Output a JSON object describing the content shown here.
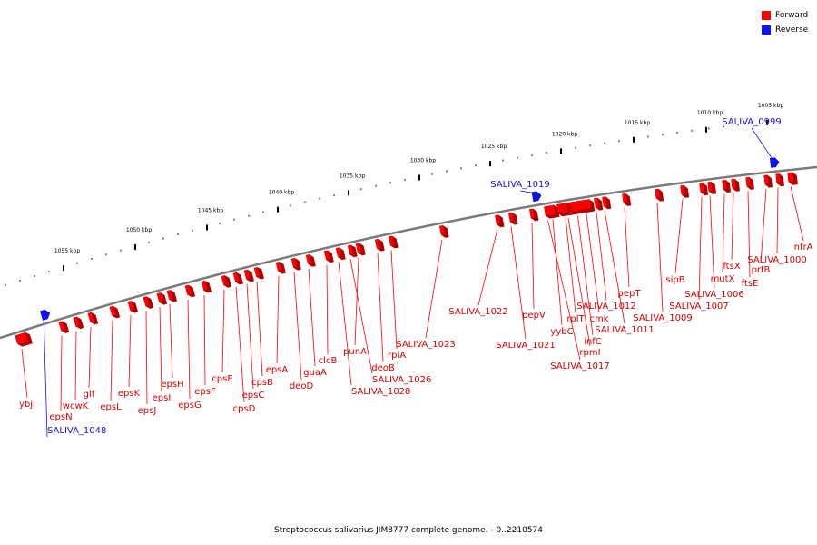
{
  "caption": "Streptococcus salivarius JIM8777 complete genome. - 0..2210574",
  "legend": {
    "forward": {
      "label": "Forward",
      "color": "#ff0000"
    },
    "reverse": {
      "label": "Reverse",
      "color": "#1010ff"
    }
  },
  "track": {
    "color": "#7a7a7a"
  },
  "ticks": [
    {
      "kbp": 1005,
      "label": "1005 kbp"
    },
    {
      "kbp": 1010,
      "label": "1010 kbp"
    },
    {
      "kbp": 1015,
      "label": "1015 kbp"
    },
    {
      "kbp": 1020,
      "label": "1020 kbp"
    },
    {
      "kbp": 1025,
      "label": "1025 kbp"
    },
    {
      "kbp": 1030,
      "label": "1030 kbp"
    },
    {
      "kbp": 1035,
      "label": "1035 kbp"
    },
    {
      "kbp": 1040,
      "label": "1040 kbp"
    },
    {
      "kbp": 1045,
      "label": "1045 kbp"
    },
    {
      "kbp": 1050,
      "label": "1050 kbp"
    },
    {
      "kbp": 1055,
      "label": "1055 kbp"
    }
  ],
  "genes": [
    {
      "name": "ybjI",
      "strand": "forward"
    },
    {
      "name": "SALIVA_1048",
      "strand": "reverse"
    },
    {
      "name": "epsN",
      "strand": "forward"
    },
    {
      "name": "wcwK",
      "strand": "forward"
    },
    {
      "name": "glf",
      "strand": "forward"
    },
    {
      "name": "epsL",
      "strand": "forward"
    },
    {
      "name": "epsK",
      "strand": "forward"
    },
    {
      "name": "epsJ",
      "strand": "forward"
    },
    {
      "name": "epsI",
      "strand": "forward"
    },
    {
      "name": "epsH",
      "strand": "forward"
    },
    {
      "name": "epsG",
      "strand": "forward"
    },
    {
      "name": "epsF",
      "strand": "forward"
    },
    {
      "name": "cpsE",
      "strand": "forward"
    },
    {
      "name": "cpsD",
      "strand": "forward"
    },
    {
      "name": "epsC",
      "strand": "forward"
    },
    {
      "name": "cpsB",
      "strand": "forward"
    },
    {
      "name": "epsA",
      "strand": "forward"
    },
    {
      "name": "deoD",
      "strand": "forward"
    },
    {
      "name": "guaA",
      "strand": "forward"
    },
    {
      "name": "clcB",
      "strand": "forward"
    },
    {
      "name": "SALIVA_1028",
      "strand": "forward"
    },
    {
      "name": "punA",
      "strand": "forward"
    },
    {
      "name": "SALIVA_1026",
      "strand": "forward"
    },
    {
      "name": "deoB",
      "strand": "forward"
    },
    {
      "name": "rpiA",
      "strand": "forward"
    },
    {
      "name": "SALIVA_1023",
      "strand": "forward"
    },
    {
      "name": "SALIVA_1022",
      "strand": "forward"
    },
    {
      "name": "SALIVA_1021",
      "strand": "forward"
    },
    {
      "name": "pepV",
      "strand": "forward"
    },
    {
      "name": "SALIVA_1019",
      "strand": "reverse"
    },
    {
      "name": "SALIVA_1017",
      "strand": "forward"
    },
    {
      "name": "yybC",
      "strand": "forward"
    },
    {
      "name": "rpmI",
      "strand": "forward"
    },
    {
      "name": "rplT",
      "strand": "forward"
    },
    {
      "name": "infC",
      "strand": "forward"
    },
    {
      "name": "cmk",
      "strand": "forward"
    },
    {
      "name": "SALIVA_1012",
      "strand": "forward"
    },
    {
      "name": "SALIVA_1011",
      "strand": "forward"
    },
    {
      "name": "pepT",
      "strand": "forward"
    },
    {
      "name": "SALIVA_1009",
      "strand": "forward"
    },
    {
      "name": "sipB",
      "strand": "forward"
    },
    {
      "name": "SALIVA_1007",
      "strand": "forward"
    },
    {
      "name": "SALIVA_1006",
      "strand": "forward"
    },
    {
      "name": "mutX",
      "strand": "forward"
    },
    {
      "name": "ftsX",
      "strand": "forward"
    },
    {
      "name": "ftsE",
      "strand": "forward"
    },
    {
      "name": "prfB",
      "strand": "forward"
    },
    {
      "name": "SALIVA_1000",
      "strand": "forward"
    },
    {
      "name": "SALIVA_0999",
      "strand": "reverse"
    },
    {
      "name": "nfrA",
      "strand": "forward"
    }
  ]
}
